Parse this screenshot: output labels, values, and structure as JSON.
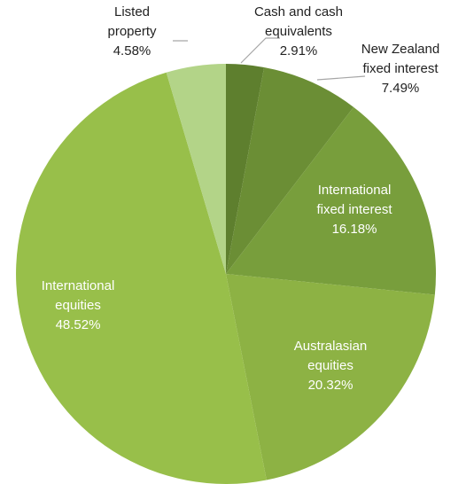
{
  "chart_data": {
    "type": "pie",
    "slices": [
      {
        "lines": [
          "Cash and cash",
          "equivalents"
        ],
        "pct_label": "2.91%",
        "value": 2.91,
        "color": "#5e7f2e"
      },
      {
        "lines": [
          "New Zealand",
          "fixed interest"
        ],
        "pct_label": "7.49%",
        "value": 7.49,
        "color": "#6b8e35"
      },
      {
        "lines": [
          "International",
          "fixed interest"
        ],
        "pct_label": "16.18%",
        "value": 16.18,
        "color": "#789e3c"
      },
      {
        "lines": [
          "Australasian",
          "equities"
        ],
        "pct_label": "20.32%",
        "value": 20.32,
        "color": "#8db244"
      },
      {
        "lines": [
          "International",
          "equities"
        ],
        "pct_label": "48.52%",
        "value": 48.52,
        "color": "#98bf4a"
      },
      {
        "lines": [
          "Listed",
          "property"
        ],
        "pct_label": "4.58%",
        "value": 4.58,
        "color": "#b3d488"
      }
    ],
    "start_angle": "12 o'clock",
    "direction": "clockwise",
    "legend": "none"
  }
}
